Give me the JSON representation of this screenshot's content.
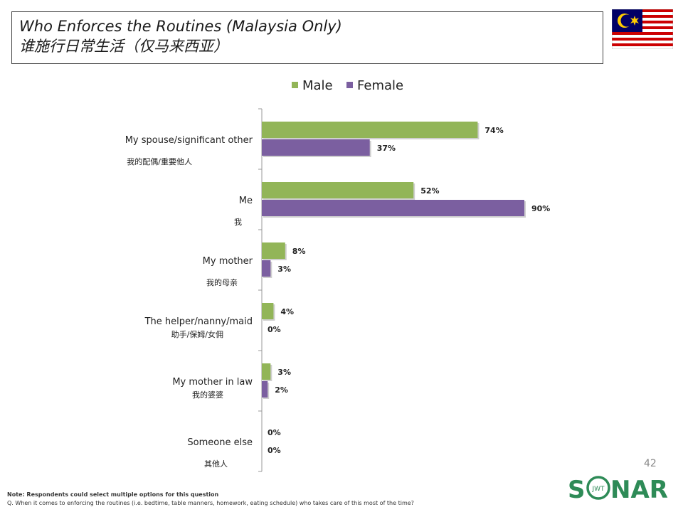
{
  "header": {
    "title_en": "Who Enforces the Routines (Malaysia Only)",
    "title_zh": "谁施行日常生活（仅马来西亚）"
  },
  "flag": {
    "icon": "malaysia-flag-icon"
  },
  "colors": {
    "male": "#92b558",
    "female": "#7b5fa0"
  },
  "chart_data": {
    "type": "bar",
    "orientation": "horizontal",
    "legend": {
      "placement": "top",
      "entries": [
        "Male",
        "Female"
      ]
    },
    "categories": [
      "My spouse/significant other",
      "Me",
      "My mother",
      "The helper/nanny/maid",
      "My mother in law",
      "Someone else"
    ],
    "categories_zh": [
      "我的配偶/重要他人",
      "我",
      "我的母亲",
      "助手/保姆/女佣",
      "我的婆婆",
      "其他人"
    ],
    "series": [
      {
        "name": "Male",
        "values": [
          74,
          52,
          8,
          4,
          3,
          0
        ],
        "labels": [
          "74%",
          "52%",
          "8%",
          "4%",
          "3%",
          "0%"
        ]
      },
      {
        "name": "Female",
        "values": [
          37,
          90,
          3,
          0,
          2,
          0
        ],
        "labels": [
          "37%",
          "90%",
          "3%",
          "0%",
          "2%",
          "0%"
        ]
      }
    ],
    "xlim": [
      0,
      100
    ],
    "grid": false
  },
  "footer": {
    "note_label": "Note: Respondents could select multiple options for this question",
    "question": "Q. When it comes to enforcing the routines (i.e. bedtime, table manners, homework, eating schedule) who takes care of this most of the time?",
    "page_number": "42",
    "logo_text_left": "S",
    "logo_text_right": "NAR",
    "logo_inner": "JWT"
  }
}
